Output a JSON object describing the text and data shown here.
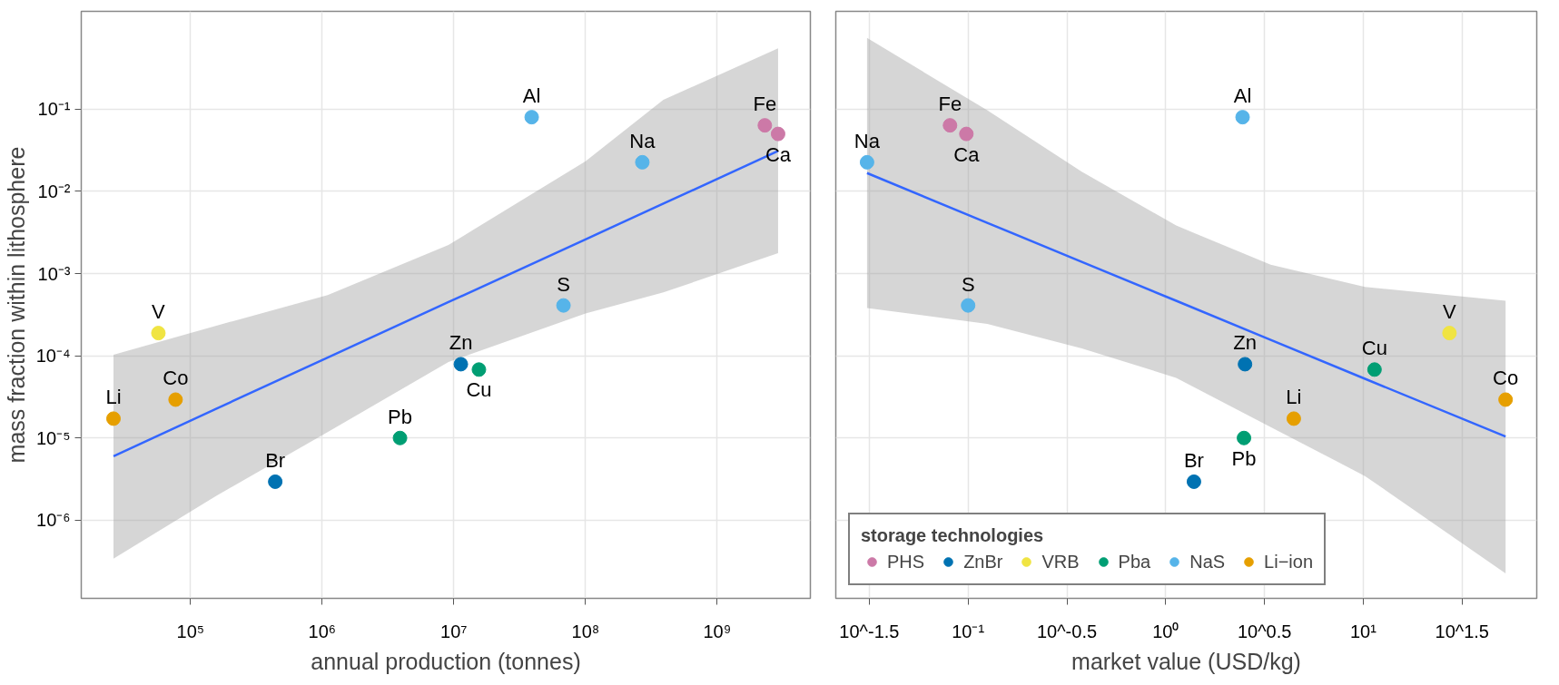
{
  "chart_data": [
    {
      "type": "scatter",
      "xlabel": "annual production (tonnes)",
      "ylabel": "mass fraction within lithosphere",
      "log": "xy",
      "grid": true,
      "marker": "circle",
      "legend": false,
      "xlim": [
        14800,
        5100000000.0
      ],
      "ylim": [
        1.12e-07,
        1.55
      ],
      "xticks": [
        {
          "value": 100000.0,
          "label": "10⁵"
        },
        {
          "value": 1000000.0,
          "label": "10⁶"
        },
        {
          "value": 10000000.0,
          "label": "10⁷"
        },
        {
          "value": 100000000.0,
          "label": "10⁸"
        },
        {
          "value": 1000000000.0,
          "label": "10⁹"
        }
      ],
      "yticks": [
        {
          "value": 1e-06,
          "label": "10⁻⁶"
        },
        {
          "value": 1e-05,
          "label": "10⁻⁵"
        },
        {
          "value": 0.0001,
          "label": "10⁻⁴"
        },
        {
          "value": 0.001,
          "label": "10⁻³"
        },
        {
          "value": 0.01,
          "label": "10⁻²"
        },
        {
          "value": 0.1,
          "label": "10⁻¹"
        }
      ],
      "series": [
        {
          "type": "line",
          "marker": "none",
          "color": "#3366ff",
          "x": [
            26000.0,
            155000.0,
            1100000.0,
            9100000.0,
            100000000.0,
            390000000.0,
            2900000000.0
          ],
          "values": [
            6e-06,
            2.25e-05,
            9.5e-05,
            0.00045,
            0.00261,
            0.0071,
            0.031
          ],
          "lower": [
            3.4e-07,
            1.96e-06,
            1.18e-05,
            8.4e-05,
            0.000327,
            0.00059,
            0.00177
          ],
          "upper": [
            0.000103,
            0.000231,
            0.000547,
            0.00223,
            0.0233,
            0.13,
            0.55
          ]
        },
        {
          "color": "#cc79a7",
          "x": [
            2300000000.0,
            2900000000.0
          ],
          "values": [
            0.0636,
            0.05
          ]
        },
        {
          "color": "#0072b2",
          "x": [
            11300000.0,
            440000.0
          ],
          "values": [
            7.9e-05,
            2.94e-06
          ]
        },
        {
          "color": "#f0e442",
          "x": [
            57000.0
          ],
          "values": [
            0.000189
          ]
        },
        {
          "color": "#009e73",
          "x": [
            3900000.0,
            15500000.0
          ],
          "values": [
            1e-05,
            6.8e-05
          ]
        },
        {
          "color": "#56b4e9",
          "x": [
            270000000.0,
            68000000.0,
            39000000.0
          ],
          "values": [
            0.0226,
            0.00041,
            0.08
          ]
        },
        {
          "color": "#e69f00",
          "x": [
            26000.0,
            77000.0
          ],
          "values": [
            1.72e-05,
            2.93e-05
          ]
        }
      ],
      "annotations": [
        {
          "text": "Fe",
          "x": 2300000000.0,
          "y": 0.0636
        },
        {
          "text": "Ca",
          "x": 2900000000.0,
          "y": 0.05
        },
        {
          "text": "Zn",
          "x": 11300000.0,
          "y": 7.9e-05
        },
        {
          "text": "Br",
          "x": 440000.0,
          "y": 2.94e-06
        },
        {
          "text": "V",
          "x": 57000.0,
          "y": 0.000189
        },
        {
          "text": "Pb",
          "x": 3900000.0,
          "y": 1e-05
        },
        {
          "text": "Cu",
          "x": 15500000.0,
          "y": 6.8e-05
        },
        {
          "text": "Na",
          "x": 270000000.0,
          "y": 0.0226
        },
        {
          "text": "S",
          "x": 68000000.0,
          "y": 0.00041
        },
        {
          "text": "Al",
          "x": 39000000.0,
          "y": 0.08
        },
        {
          "text": "Li",
          "x": 26000.0,
          "y": 1.72e-05
        },
        {
          "text": "Co",
          "x": 77000.0,
          "y": 2.93e-05
        }
      ]
    },
    {
      "type": "scatter",
      "xlabel": "market value (USD/kg)",
      "log": "xy",
      "grid": true,
      "marker": "circle",
      "legend": "bottom left",
      "legend_title": "storage technologies",
      "tick_labels": "x",
      "xlim": [
        0.0214,
        75.5
      ],
      "ylim": [
        1.12e-07,
        1.55
      ],
      "xticks": [
        {
          "value": 0.031623,
          "label": "10^-1.5"
        },
        {
          "value": 0.1,
          "label": "10⁻¹"
        },
        {
          "value": 0.31623,
          "label": "10^-0.5"
        },
        {
          "value": 1,
          "label": "10⁰"
        },
        {
          "value": 3.1623,
          "label": "10^0.5"
        },
        {
          "value": 10,
          "label": "10¹"
        },
        {
          "value": 31.623,
          "label": "10^1.5"
        }
      ],
      "yticks": [
        1e-06,
        1e-05,
        0.0001,
        0.001,
        0.01,
        0.1
      ],
      "series": [
        {
          "type": "line",
          "marker": "none",
          "color": "#3366ff",
          "x": [
            0.0308,
            0.125,
            0.376,
            1.13,
            3.4,
            10.2,
            52.5
          ],
          "values": [
            0.0167,
            0.00415,
            0.00139,
            0.000467,
            0.000156,
            5.25e-05,
            1.04e-05
          ],
          "lower": [
            0.000381,
            0.000245,
            0.000123,
            5.4e-05,
            1.36e-05,
            3.45e-06,
            2.26e-07
          ],
          "upper": [
            0.735,
            0.097,
            0.0174,
            0.00384,
            0.00128,
            0.00069,
            0.000468
          ]
        },
        {
          "name": "PHS",
          "color": "#cc79a7",
          "x": [
            0.081,
            0.098
          ],
          "values": [
            0.0636,
            0.05
          ]
        },
        {
          "name": "ZnBr",
          "color": "#0072b2",
          "x": [
            2.52,
            1.39
          ],
          "values": [
            7.9e-05,
            2.94e-06
          ]
        },
        {
          "name": "VRB",
          "color": "#f0e442",
          "x": [
            27.3
          ],
          "values": [
            0.000189
          ]
        },
        {
          "name": "Pba",
          "color": "#009e73",
          "x": [
            2.49,
            11.4
          ],
          "values": [
            1e-05,
            6.8e-05
          ]
        },
        {
          "name": "NaS",
          "color": "#56b4e9",
          "x": [
            0.0308,
            0.1,
            2.45
          ],
          "values": [
            0.0226,
            0.00041,
            0.08
          ]
        },
        {
          "name": "Li−ion",
          "color": "#e69f00",
          "x": [
            4.45,
            52.5
          ],
          "values": [
            1.72e-05,
            2.93e-05
          ]
        }
      ],
      "annotations": [
        {
          "text": "Fe",
          "x": 0.081,
          "y": 0.0636
        },
        {
          "text": "Ca",
          "x": 0.098,
          "y": 0.05
        },
        {
          "text": "Zn",
          "x": 2.52,
          "y": 7.9e-05
        },
        {
          "text": "Br",
          "x": 1.39,
          "y": 2.94e-06
        },
        {
          "text": "V",
          "x": 27.3,
          "y": 0.000189
        },
        {
          "text": "Pb",
          "x": 2.49,
          "y": 1e-05
        },
        {
          "text": "Cu",
          "x": 11.4,
          "y": 6.8e-05
        },
        {
          "text": "Na",
          "x": 0.0308,
          "y": 0.0226
        },
        {
          "text": "S",
          "x": 0.1,
          "y": 0.00041
        },
        {
          "text": "Al",
          "x": 2.45,
          "y": 0.08
        },
        {
          "text": "Li",
          "x": 4.45,
          "y": 1.72e-05
        },
        {
          "text": "Co",
          "x": 52.5,
          "y": 2.93e-05
        }
      ]
    }
  ]
}
